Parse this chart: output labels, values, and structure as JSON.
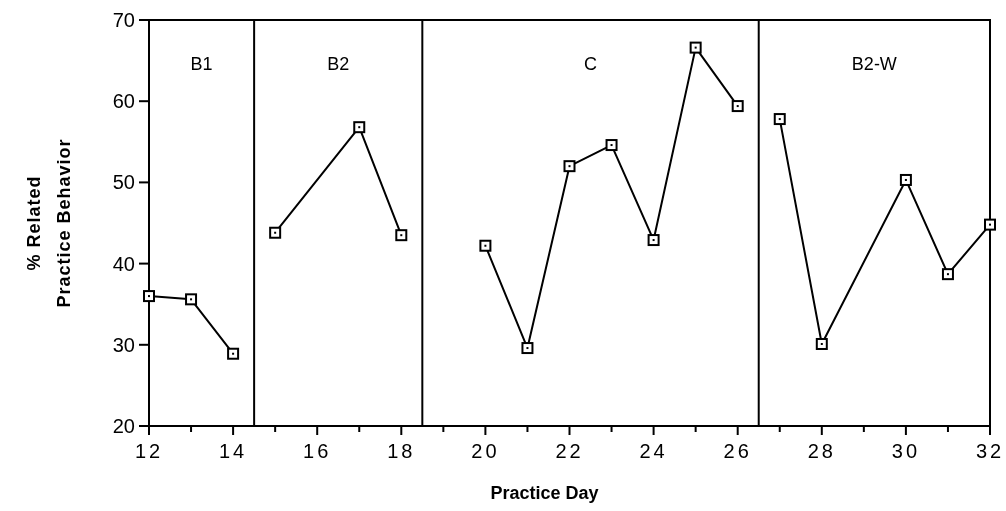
{
  "chart_data": {
    "type": "line",
    "xlabel": "Practice Day",
    "ylabel": "% Related\nPractice Behavior",
    "xlim": [
      12,
      32
    ],
    "xticks": [
      12,
      {
        "value": 13,
        "label": null
      },
      14,
      {
        "value": 15,
        "label": null
      },
      16,
      {
        "value": 17,
        "label": null
      },
      18,
      {
        "value": 19,
        "label": null
      },
      20,
      {
        "value": 21,
        "label": null
      },
      22,
      {
        "value": 23,
        "label": null
      },
      24,
      {
        "value": 25,
        "label": null
      },
      26,
      {
        "value": 27,
        "label": null
      },
      28,
      {
        "value": 29,
        "label": null
      },
      30,
      {
        "value": 31,
        "label": null
      },
      32
    ],
    "ylim": [
      20,
      70
    ],
    "yticks": [
      20,
      30,
      40,
      50,
      60,
      70
    ],
    "series": [
      {
        "color": "#000000",
        "x": [
          12,
          13,
          14
        ],
        "values": [
          36.0,
          35.6,
          28.9
        ]
      },
      {
        "color": "#000000",
        "x": [
          15,
          17,
          18
        ],
        "values": [
          43.8,
          56.8,
          43.5
        ]
      },
      {
        "color": "#000000",
        "x": [
          20,
          21,
          22,
          23,
          24,
          25,
          26
        ],
        "values": [
          42.2,
          29.6,
          52.0,
          54.6,
          42.9,
          66.6,
          59.4
        ]
      },
      {
        "color": "#000000",
        "x": [
          27,
          28,
          30,
          31,
          32
        ],
        "values": [
          57.8,
          30.1,
          50.3,
          38.7,
          44.8
        ]
      }
    ],
    "ref_lines": [
      {
        "axis": "x",
        "value": 14.5,
        "color": "#000000"
      },
      {
        "axis": "x",
        "value": 18.5,
        "color": "#000000"
      },
      {
        "axis": "x",
        "value": 26.5,
        "color": "#000000"
      }
    ],
    "annotations": [
      "B1",
      "B2",
      "C",
      "B2-W"
    ],
    "marker": "square",
    "grid": false
  }
}
